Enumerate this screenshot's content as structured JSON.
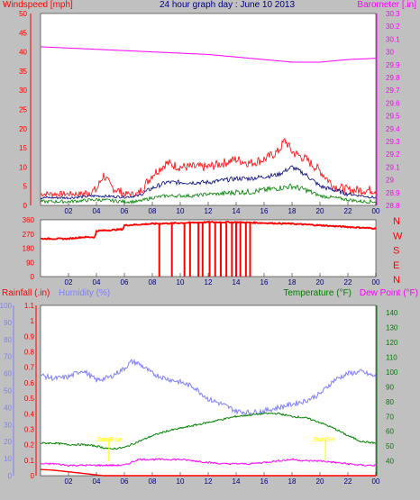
{
  "title": "24 hour graph day : June 10 2013",
  "colors": {
    "background": "#c0c0c0",
    "plot": "#ffffff",
    "wind": "#ff0000",
    "gust_blue": "#000080",
    "wind_green": "#008000",
    "barometer": "#ff00ff",
    "humidity": "#8080ff",
    "temperature": "#008000",
    "dewpoint": "#ff00ff",
    "rain": "#ff0000",
    "time_axis": "#000080",
    "annotation": "#ffff00"
  },
  "x_tick_labels": [
    "02",
    "04",
    "06",
    "08",
    "10",
    "12",
    "14",
    "16",
    "18",
    "20",
    "22",
    "00"
  ],
  "chart_data": [
    {
      "type": "line",
      "title": "24 hour graph day : June 10 2013",
      "ylabel": "Windspeed [mph]",
      "y2label": "Barometer [.in]",
      "x_unit": "hour of day",
      "ylim": [
        0,
        50
      ],
      "y2lim": [
        28.8,
        30.3
      ],
      "y_ticks": [
        "0",
        "5",
        "10",
        "15",
        "20",
        "25",
        "30",
        "35",
        "40",
        "45",
        "50"
      ],
      "y2_ticks": [
        "28.8",
        "28.9",
        "29",
        "29.1",
        "29.2",
        "29.3",
        "29.4",
        "29.5",
        "29.6",
        "29.7",
        "29.8",
        "29.9",
        "30",
        "30.1",
        "30.2",
        "30.3"
      ],
      "grid": false,
      "series": [
        {
          "name": "Windspeed",
          "axis": "left",
          "color": "#ff0000",
          "x": [
            0,
            1,
            2,
            3,
            4,
            4.5,
            5,
            6,
            7,
            8,
            9,
            10,
            11,
            12,
            13,
            14,
            15,
            16,
            17,
            17.5,
            18,
            19,
            20,
            21,
            22,
            23,
            24
          ],
          "y": [
            3,
            3,
            3,
            3,
            4,
            8,
            5,
            3,
            3,
            8,
            11,
            10,
            10,
            10,
            11,
            12,
            11,
            12,
            14,
            17,
            14,
            12,
            9,
            5,
            4,
            4,
            4
          ]
        },
        {
          "name": "Windspeed average",
          "axis": "left",
          "color": "#000080",
          "x": [
            0,
            2,
            4,
            6,
            7,
            8,
            9,
            10,
            11,
            12,
            13,
            14,
            15,
            16,
            17,
            18,
            19,
            20,
            21,
            22,
            23,
            24
          ],
          "y": [
            2,
            2,
            2.5,
            2.2,
            2.5,
            4.5,
            6,
            6,
            6,
            6,
            6.5,
            7,
            7,
            7.5,
            8,
            10,
            8,
            5,
            4,
            3,
            2.5,
            2
          ]
        },
        {
          "name": "Windspeed minimum",
          "axis": "left",
          "color": "#008000",
          "x": [
            0,
            2,
            4,
            6,
            7,
            8,
            9,
            10,
            11,
            12,
            13,
            14,
            15,
            16,
            17,
            18,
            19,
            20,
            21,
            22,
            23,
            24
          ],
          "y": [
            1,
            1,
            1.5,
            1,
            1,
            2,
            2.5,
            2.5,
            2.5,
            3,
            3,
            3.5,
            3.5,
            4,
            4.5,
            5,
            4,
            2.5,
            2,
            1.5,
            1,
            1
          ]
        },
        {
          "name": "Barometer",
          "axis": "right",
          "color": "#ff00ff",
          "x": [
            0,
            2,
            4,
            6,
            8,
            10,
            12,
            14,
            16,
            18,
            20,
            22,
            24
          ],
          "y": [
            30.04,
            30.03,
            30.02,
            30.01,
            30.0,
            29.99,
            29.98,
            29.96,
            29.94,
            29.92,
            29.92,
            29.94,
            29.95
          ]
        }
      ]
    },
    {
      "type": "line",
      "ylabel": "Wind direction",
      "ylim": [
        0,
        360
      ],
      "y_ticks": [
        "0",
        "90",
        "180",
        "270",
        "360"
      ],
      "compass_labels": [
        "N",
        "W",
        "S",
        "E",
        "N"
      ],
      "series": [
        {
          "name": "Wind direction",
          "color": "#ff0000",
          "x": [
            0,
            2,
            3,
            3.9,
            4,
            5,
            5.9,
            6,
            8,
            10,
            12,
            14,
            16,
            18,
            20,
            22,
            24
          ],
          "y": [
            240,
            240,
            250,
            250,
            290,
            295,
            300,
            325,
            335,
            340,
            345,
            345,
            340,
            335,
            325,
            315,
            305
          ],
          "north_flips_hours": [
            8.5,
            9.4,
            10.3,
            10.7,
            11.3,
            11.6,
            12.1,
            12.5,
            12.9,
            13.3,
            13.7,
            14.0,
            14.3,
            14.7,
            15.0
          ]
        }
      ]
    },
    {
      "type": "line",
      "ylabel_rain": "Rainfall (.in)",
      "ylabel_humidity": "Humidity (%)",
      "ylabel_temperature": "Temperature (°F)",
      "ylabel_dewpoint": "Dew Point (°F)",
      "rain_lim": [
        0,
        1.1
      ],
      "humidity_lim": [
        0,
        100
      ],
      "temperature_lim": [
        30,
        145
      ],
      "rain_ticks": [
        "0",
        "0.1",
        "0.2",
        "0.3",
        "0.4",
        "0.5",
        "0.6",
        "0.7",
        "0.8",
        "0.9",
        "1",
        "1.1"
      ],
      "humidity_ticks": [
        "0",
        "10",
        "20",
        "30",
        "40",
        "50",
        "60",
        "70",
        "80",
        "90",
        "100"
      ],
      "temperature_ticks": [
        "40",
        "50",
        "60",
        "70",
        "80",
        "90",
        "100",
        "110",
        "120",
        "130",
        "140"
      ],
      "annotations": [
        {
          "x": 4.9,
          "text": "Sun Rise"
        },
        {
          "x": 20.4,
          "text": "Sun Set"
        }
      ],
      "series": [
        {
          "name": "Humidity",
          "axis": "humidity",
          "color": "#8080ff",
          "x": [
            0,
            1,
            2,
            3,
            4,
            5,
            6,
            6.5,
            7,
            8,
            9,
            10,
            11,
            12,
            13,
            14,
            15,
            16,
            17,
            18,
            19,
            20,
            20.5,
            21,
            22,
            23,
            24
          ],
          "y": [
            59,
            57,
            58,
            62,
            56,
            58,
            63,
            67,
            66,
            60,
            57,
            55,
            52,
            45,
            42,
            38,
            37,
            38,
            40,
            42,
            44,
            48,
            52,
            56,
            60,
            61,
            58
          ]
        },
        {
          "name": "Temperature",
          "axis": "temperature",
          "color": "#008000",
          "x": [
            0,
            1,
            2,
            3,
            4,
            5,
            6,
            7,
            8,
            9,
            10,
            11,
            12,
            13,
            14,
            15,
            16,
            17,
            18,
            19,
            20,
            21,
            22,
            23,
            24
          ],
          "y": [
            52,
            52,
            51,
            51,
            50,
            48,
            49,
            53,
            57,
            60,
            62,
            64,
            66,
            68,
            70,
            71,
            72,
            72,
            70,
            69,
            66,
            62,
            57,
            53,
            52
          ]
        },
        {
          "name": "Dew Point",
          "axis": "temperature",
          "color": "#ff00ff",
          "x": [
            0,
            1,
            2,
            3,
            4,
            5,
            6,
            6.5,
            7,
            8,
            9,
            10,
            11,
            12,
            13,
            14,
            15,
            16,
            17,
            18,
            19,
            20,
            21,
            22,
            23,
            24
          ],
          "y": [
            38,
            38,
            37,
            37,
            37,
            37,
            37,
            39,
            41,
            41,
            41,
            41,
            40,
            39,
            38,
            38,
            38,
            39,
            40,
            41,
            40,
            40,
            39,
            38,
            37,
            37
          ]
        },
        {
          "name": "Rainfall",
          "axis": "rain",
          "color": "#ff0000",
          "x": [
            0,
            1,
            2,
            3,
            4,
            4.5,
            5,
            24
          ],
          "y": [
            0.04,
            0.035,
            0.025,
            0.015,
            0.005,
            0.0,
            0.0,
            0.0
          ]
        }
      ]
    }
  ]
}
